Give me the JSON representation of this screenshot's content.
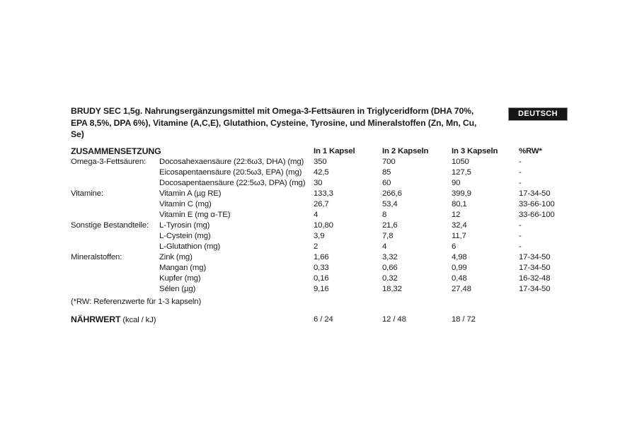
{
  "badge": {
    "label": "DEUTSCH",
    "bg": "#161616",
    "fg": "#ffffff"
  },
  "title": {
    "line1": "BRUDY SEC 1,5g. Nahrungsergänzungsmittel mit Omega-3-Fettsäuren in Triglyceridform (DHA 70%,",
    "line2": "EPA 8,5%, DPA 6%), Vitamine (A,C,E), Glutathion, Cysteine, Tyrosine, und Mineralstoffen (Zn, Mn, Cu,",
    "line3": "Se)"
  },
  "table": {
    "header": {
      "composition": "ZUSAMMENSETZUNG",
      "col1": "In 1 Kapsel",
      "col2": "In 2 Kapseln",
      "col3": "In 3 Kapseln",
      "rw": "%RW*"
    },
    "rows": [
      {
        "category": "Omega-3-Fettsäuren:",
        "ingredient": "Docosahexaensäure (22:6ω3, DHA) (mg)",
        "v1": "350",
        "v2": "700",
        "v3": "1050",
        "rw": "-"
      },
      {
        "category": "",
        "ingredient": "Eicosapentaensäure (20:5ω3, EPA) (mg)",
        "v1": "42,5",
        "v2": "85",
        "v3": "127,5",
        "rw": "-"
      },
      {
        "category": "",
        "ingredient": "Docosapentaensäure (22:5ω3, DPA) (mg)",
        "v1": "30",
        "v2": "60",
        "v3": "90",
        "rw": "-"
      },
      {
        "category": "Vitamine:",
        "ingredient": "Vitamin A (µg RE)",
        "v1": "133,3",
        "v2": "266,6",
        "v3": "399,9",
        "rw": "17-34-50"
      },
      {
        "category": "",
        "ingredient": "Vitamin C (mg)",
        "v1": "26,7",
        "v2": "53,4",
        "v3": "80,1",
        "rw": "33-66-100"
      },
      {
        "category": "",
        "ingredient": "Vitamin E (mg α-TE)",
        "v1": "4",
        "v2": "8",
        "v3": "12",
        "rw": "33-66-100"
      },
      {
        "category": "Sonstige Bestandteile:",
        "ingredient": "L-Tyrosin (mg)",
        "v1": "10,80",
        "v2": "21,6",
        "v3": "32,4",
        "rw": "-"
      },
      {
        "category": "",
        "ingredient": "L-Cystein (mg)",
        "v1": "3,9",
        "v2": "7,8",
        "v3": "11,7",
        "rw": "-"
      },
      {
        "category": "",
        "ingredient": "L-Glutathion (mg)",
        "v1": "2",
        "v2": "4",
        "v3": "6",
        "rw": "-"
      },
      {
        "category": "Mineralstoffen:",
        "ingredient": "Zink (mg)",
        "v1": "1,66",
        "v2": "3,32",
        "v3": "4,98",
        "rw": "17-34-50"
      },
      {
        "category": "",
        "ingredient": "Mangan (mg)",
        "v1": "0,33",
        "v2": "0,66",
        "v3": "0,99",
        "rw": "17-34-50"
      },
      {
        "category": "",
        "ingredient": "Kupfer (mg)",
        "v1": "0,16",
        "v2": "0,32",
        "v3": "0,48",
        "rw": "16-32-48"
      },
      {
        "category": "",
        "ingredient": "Sélen (µg)",
        "v1": "9,16",
        "v2": "18,32",
        "v3": "27,48",
        "rw": "17-34-50"
      }
    ],
    "footnote": "(*RW: Referenzwerte für 1-3 kapseln)",
    "nutrition": {
      "label_bold": "NÄHRWERT",
      "label_rest": " (kcal / kJ)",
      "v1": "6 / 24",
      "v2": "12 / 48",
      "v3": "18 / 72"
    }
  }
}
